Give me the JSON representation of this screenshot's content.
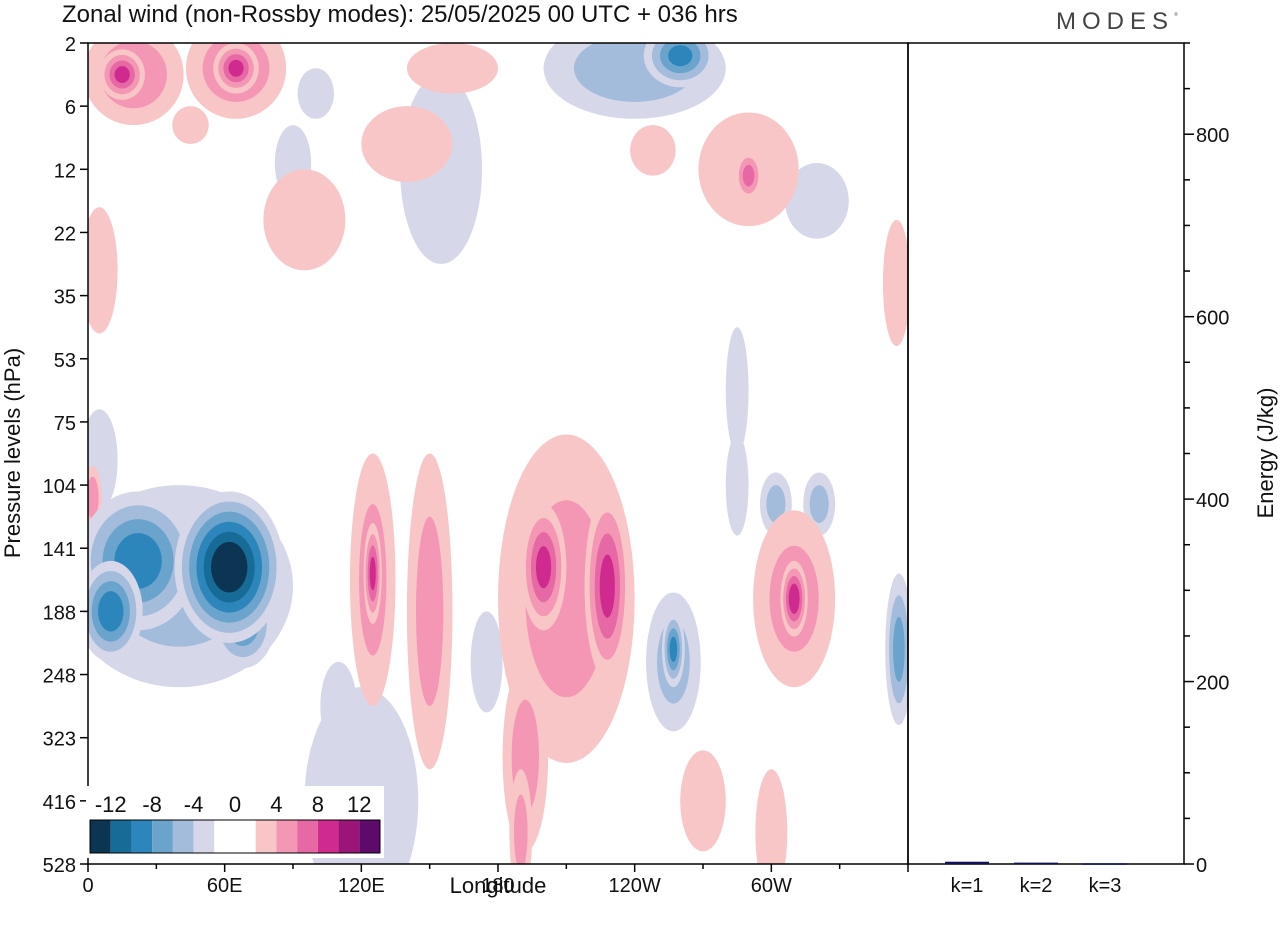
{
  "title": "Zonal wind (non-Rossby modes):  25/05/2025  00 UTC  + 036 hrs",
  "brand": "MODES",
  "brand_mark": "°",
  "chart_data": [
    {
      "type": "heatmap",
      "xlabel": "Longitude",
      "ylabel": "Pressure levels (hPa)",
      "x_ticks": [
        {
          "lon": 0,
          "label": "0"
        },
        {
          "lon": 60,
          "label": "60E"
        },
        {
          "lon": 120,
          "label": "120E"
        },
        {
          "lon": 180,
          "label": "180"
        },
        {
          "lon": 240,
          "label": "120W"
        },
        {
          "lon": 300,
          "label": "60W"
        }
      ],
      "x_range": [
        0,
        360
      ],
      "y_levels": [
        "2",
        "6",
        "12",
        "22",
        "35",
        "53",
        "75",
        "104",
        "141",
        "188",
        "248",
        "323",
        "416",
        "528"
      ],
      "colorbar": {
        "labels": [
          "-12",
          "-8",
          "-4",
          "0",
          "4",
          "8",
          "12"
        ],
        "colors": [
          "#0b3552",
          "#176b97",
          "#2d86bb",
          "#6aa3cc",
          "#a4bcdb",
          "#d6d8ea",
          "#ffffff",
          "#ffffff",
          "#f8c6c6",
          "#f497b4",
          "#e668a5",
          "#cf2a8e",
          "#9b1478",
          "#5d0a6b"
        ]
      },
      "features": [
        {
          "lon": 22,
          "lev": 8.2,
          "w": 26,
          "h": 1.1,
          "v": -9
        },
        {
          "lon": 62,
          "lev": 8.3,
          "w": 24,
          "h": 1.2,
          "v": -14
        },
        {
          "lon": 10,
          "lev": 9.0,
          "w": 14,
          "h": 0.8,
          "v": -9
        },
        {
          "lon": 40,
          "lev": 8.6,
          "w": 50,
          "h": 1.6,
          "v": -4
        },
        {
          "lon": 68,
          "lev": 9.2,
          "w": 14,
          "h": 0.7,
          "v": -7
        },
        {
          "lon": 5,
          "lev": 6.6,
          "w": 8,
          "h": 0.8,
          "v": -3
        },
        {
          "lon": 110,
          "lev": 10.5,
          "w": 8,
          "h": 0.7,
          "v": -3
        },
        {
          "lon": 120,
          "lev": 12.0,
          "w": 25,
          "h": 1.8,
          "v": -3
        },
        {
          "lon": 175,
          "lev": 9.8,
          "w": 7,
          "h": 0.8,
          "v": -3
        },
        {
          "lon": 257,
          "lev": 9.8,
          "w": 12,
          "h": 1.1,
          "v": -4
        },
        {
          "lon": 257,
          "lev": 9.6,
          "w": 5,
          "h": 0.6,
          "v": -8
        },
        {
          "lon": 302,
          "lev": 7.3,
          "w": 7,
          "h": 0.5,
          "v": -4
        },
        {
          "lon": 321,
          "lev": 7.3,
          "w": 7,
          "h": 0.5,
          "v": -4
        },
        {
          "lon": 356,
          "lev": 9.6,
          "w": 6,
          "h": 1.2,
          "v": -6
        },
        {
          "lon": 240,
          "lev": 0.4,
          "w": 40,
          "h": 0.8,
          "v": -5
        },
        {
          "lon": 260,
          "lev": 0.2,
          "w": 16,
          "h": 0.5,
          "v": -8
        },
        {
          "lon": 100,
          "lev": 0.8,
          "w": 8,
          "h": 0.4,
          "v": -3
        },
        {
          "lon": 155,
          "lev": 2.0,
          "w": 18,
          "h": 1.5,
          "v": -3
        },
        {
          "lon": 320,
          "lev": 2.5,
          "w": 14,
          "h": 0.6,
          "v": -3
        },
        {
          "lon": 90,
          "lev": 1.9,
          "w": 8,
          "h": 0.6,
          "v": -3
        },
        {
          "lon": 285,
          "lev": 5.5,
          "w": 5,
          "h": 1.0,
          "v": -3
        },
        {
          "lon": 285,
          "lev": 7.0,
          "w": 5,
          "h": 0.8,
          "v": -3
        },
        {
          "lon": 125,
          "lev": 8.5,
          "w": 10,
          "h": 2.0,
          "v": 4
        },
        {
          "lon": 125,
          "lev": 8.4,
          "w": 4,
          "h": 0.8,
          "v": 8
        },
        {
          "lon": 150,
          "lev": 9.0,
          "w": 10,
          "h": 2.5,
          "v": 4
        },
        {
          "lon": 210,
          "lev": 8.8,
          "w": 30,
          "h": 2.6,
          "v": 4
        },
        {
          "lon": 200,
          "lev": 8.3,
          "w": 10,
          "h": 1.0,
          "v": 8
        },
        {
          "lon": 228,
          "lev": 8.6,
          "w": 10,
          "h": 1.5,
          "v": 8
        },
        {
          "lon": 192,
          "lev": 11.3,
          "w": 10,
          "h": 1.5,
          "v": 4
        },
        {
          "lon": 190,
          "lev": 12.5,
          "w": 5,
          "h": 1.0,
          "v": 4
        },
        {
          "lon": 310,
          "lev": 8.8,
          "w": 18,
          "h": 1.4,
          "v": 4
        },
        {
          "lon": 310,
          "lev": 8.8,
          "w": 6,
          "h": 0.6,
          "v": 9
        },
        {
          "lon": 300,
          "lev": 12.5,
          "w": 7,
          "h": 1.0,
          "v": 3
        },
        {
          "lon": 270,
          "lev": 12.0,
          "w": 10,
          "h": 0.8,
          "v": 3
        },
        {
          "lon": 20,
          "lev": 0.5,
          "w": 22,
          "h": 0.8,
          "v": 5
        },
        {
          "lon": 65,
          "lev": 0.4,
          "w": 22,
          "h": 0.8,
          "v": 5
        },
        {
          "lon": 15,
          "lev": 0.5,
          "w": 10,
          "h": 0.4,
          "v": 8
        },
        {
          "lon": 65,
          "lev": 0.4,
          "w": 10,
          "h": 0.4,
          "v": 8
        },
        {
          "lon": 290,
          "lev": 2.0,
          "w": 22,
          "h": 0.9,
          "v": 3
        },
        {
          "lon": 290,
          "lev": 2.1,
          "w": 6,
          "h": 0.4,
          "v": 6
        },
        {
          "lon": 248,
          "lev": 1.7,
          "w": 10,
          "h": 0.4,
          "v": 3
        },
        {
          "lon": 95,
          "lev": 2.8,
          "w": 18,
          "h": 0.8,
          "v": 3
        },
        {
          "lon": 5,
          "lev": 3.6,
          "w": 8,
          "h": 1.0,
          "v": 3
        },
        {
          "lon": 355,
          "lev": 3.8,
          "w": 6,
          "h": 1.0,
          "v": 3
        },
        {
          "lon": 2,
          "lev": 7.2,
          "w": 4,
          "h": 0.5,
          "v": 5
        },
        {
          "lon": 160,
          "lev": 0.4,
          "w": 20,
          "h": 0.4,
          "v": 3
        },
        {
          "lon": 140,
          "lev": 1.6,
          "w": 20,
          "h": 0.6,
          "v": 3
        },
        {
          "lon": 45,
          "lev": 1.3,
          "w": 8,
          "h": 0.3,
          "v": 3
        }
      ],
      "energy_axis": {
        "label": "Energy (J/kg)",
        "range": [
          0,
          900
        ],
        "ticks": [
          0,
          200,
          400,
          600,
          800
        ],
        "minor_step": 50
      },
      "energy_bars": [
        {
          "label": "k=1",
          "value": 2.5,
          "color": "#101055"
        },
        {
          "label": "k=2",
          "value": 1.5,
          "color": "#101055"
        },
        {
          "label": "k=3",
          "value": 0.8,
          "color": "#101055"
        }
      ]
    }
  ]
}
